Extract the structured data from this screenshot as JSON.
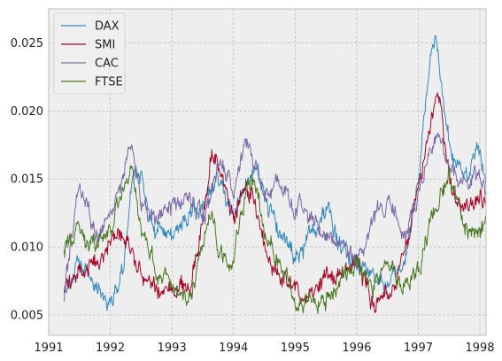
{
  "chart_data": {
    "type": "line",
    "title": "",
    "xlabel": "",
    "ylabel": "",
    "xlim": [
      1991.0,
      1998.1
    ],
    "ylim": [
      0.0035,
      0.0275
    ],
    "grid": true,
    "legend_position": "top-left",
    "x_ticks": [
      {
        "value": 1991,
        "label": "1991"
      },
      {
        "value": 1992,
        "label": "1992"
      },
      {
        "value": 1993,
        "label": "1993"
      },
      {
        "value": 1994,
        "label": "1994"
      },
      {
        "value": 1995,
        "label": "1995"
      },
      {
        "value": 1996,
        "label": "1996"
      },
      {
        "value": 1997,
        "label": "1997"
      },
      {
        "value": 1998,
        "label": "1998"
      }
    ],
    "y_ticks": [
      {
        "value": 0.005,
        "label": "0.005"
      },
      {
        "value": 0.01,
        "label": "0.010"
      },
      {
        "value": 0.015,
        "label": "0.015"
      },
      {
        "value": 0.02,
        "label": "0.020"
      },
      {
        "value": 0.025,
        "label": "0.025"
      }
    ],
    "x": [
      1991.25,
      1991.5,
      1991.75,
      1992.0,
      1992.2,
      1992.35,
      1992.5,
      1992.75,
      1993.0,
      1993.25,
      1993.5,
      1993.65,
      1993.75,
      1994.0,
      1994.2,
      1994.35,
      1994.5,
      1994.75,
      1995.0,
      1995.25,
      1995.5,
      1995.75,
      1996.0,
      1996.25,
      1996.5,
      1996.75,
      1997.0,
      1997.2,
      1997.3,
      1997.5,
      1997.75,
      1998.0,
      1998.1
    ],
    "series": [
      {
        "name": "DAX",
        "color": "#348ABD",
        "values": [
          0.0072,
          0.0085,
          0.0075,
          0.006,
          0.008,
          0.015,
          0.015,
          0.011,
          0.011,
          0.012,
          0.013,
          0.014,
          0.015,
          0.012,
          0.015,
          0.016,
          0.014,
          0.011,
          0.009,
          0.011,
          0.013,
          0.01,
          0.009,
          0.008,
          0.007,
          0.008,
          0.015,
          0.024,
          0.0255,
          0.017,
          0.015,
          0.017,
          0.015
        ]
      },
      {
        "name": "SMI",
        "color": "#A60628",
        "values": [
          0.007,
          0.008,
          0.009,
          0.01,
          0.011,
          0.01,
          0.008,
          0.007,
          0.007,
          0.0065,
          0.012,
          0.017,
          0.016,
          0.012,
          0.015,
          0.013,
          0.01,
          0.008,
          0.0065,
          0.0065,
          0.008,
          0.008,
          0.009,
          0.006,
          0.006,
          0.009,
          0.014,
          0.019,
          0.021,
          0.015,
          0.012,
          0.014,
          0.013
        ]
      },
      {
        "name": "CAC",
        "color": "#7A68A6",
        "values": [
          0.0065,
          0.015,
          0.011,
          0.012,
          0.015,
          0.018,
          0.013,
          0.012,
          0.013,
          0.014,
          0.012,
          0.014,
          0.016,
          0.014,
          0.018,
          0.016,
          0.014,
          0.015,
          0.013,
          0.012,
          0.011,
          0.01,
          0.009,
          0.012,
          0.013,
          0.011,
          0.014,
          0.017,
          0.018,
          0.016,
          0.015,
          0.015,
          0.015
        ]
      },
      {
        "name": "FTSE",
        "color": "#467821",
        "values": [
          0.01,
          0.011,
          0.01,
          0.011,
          0.014,
          0.016,
          0.011,
          0.008,
          0.007,
          0.006,
          0.01,
          0.013,
          0.01,
          0.009,
          0.014,
          0.015,
          0.011,
          0.009,
          0.006,
          0.006,
          0.006,
          0.008,
          0.009,
          0.007,
          0.009,
          0.007,
          0.008,
          0.012,
          0.013,
          0.015,
          0.011,
          0.011,
          0.012
        ]
      }
    ]
  }
}
